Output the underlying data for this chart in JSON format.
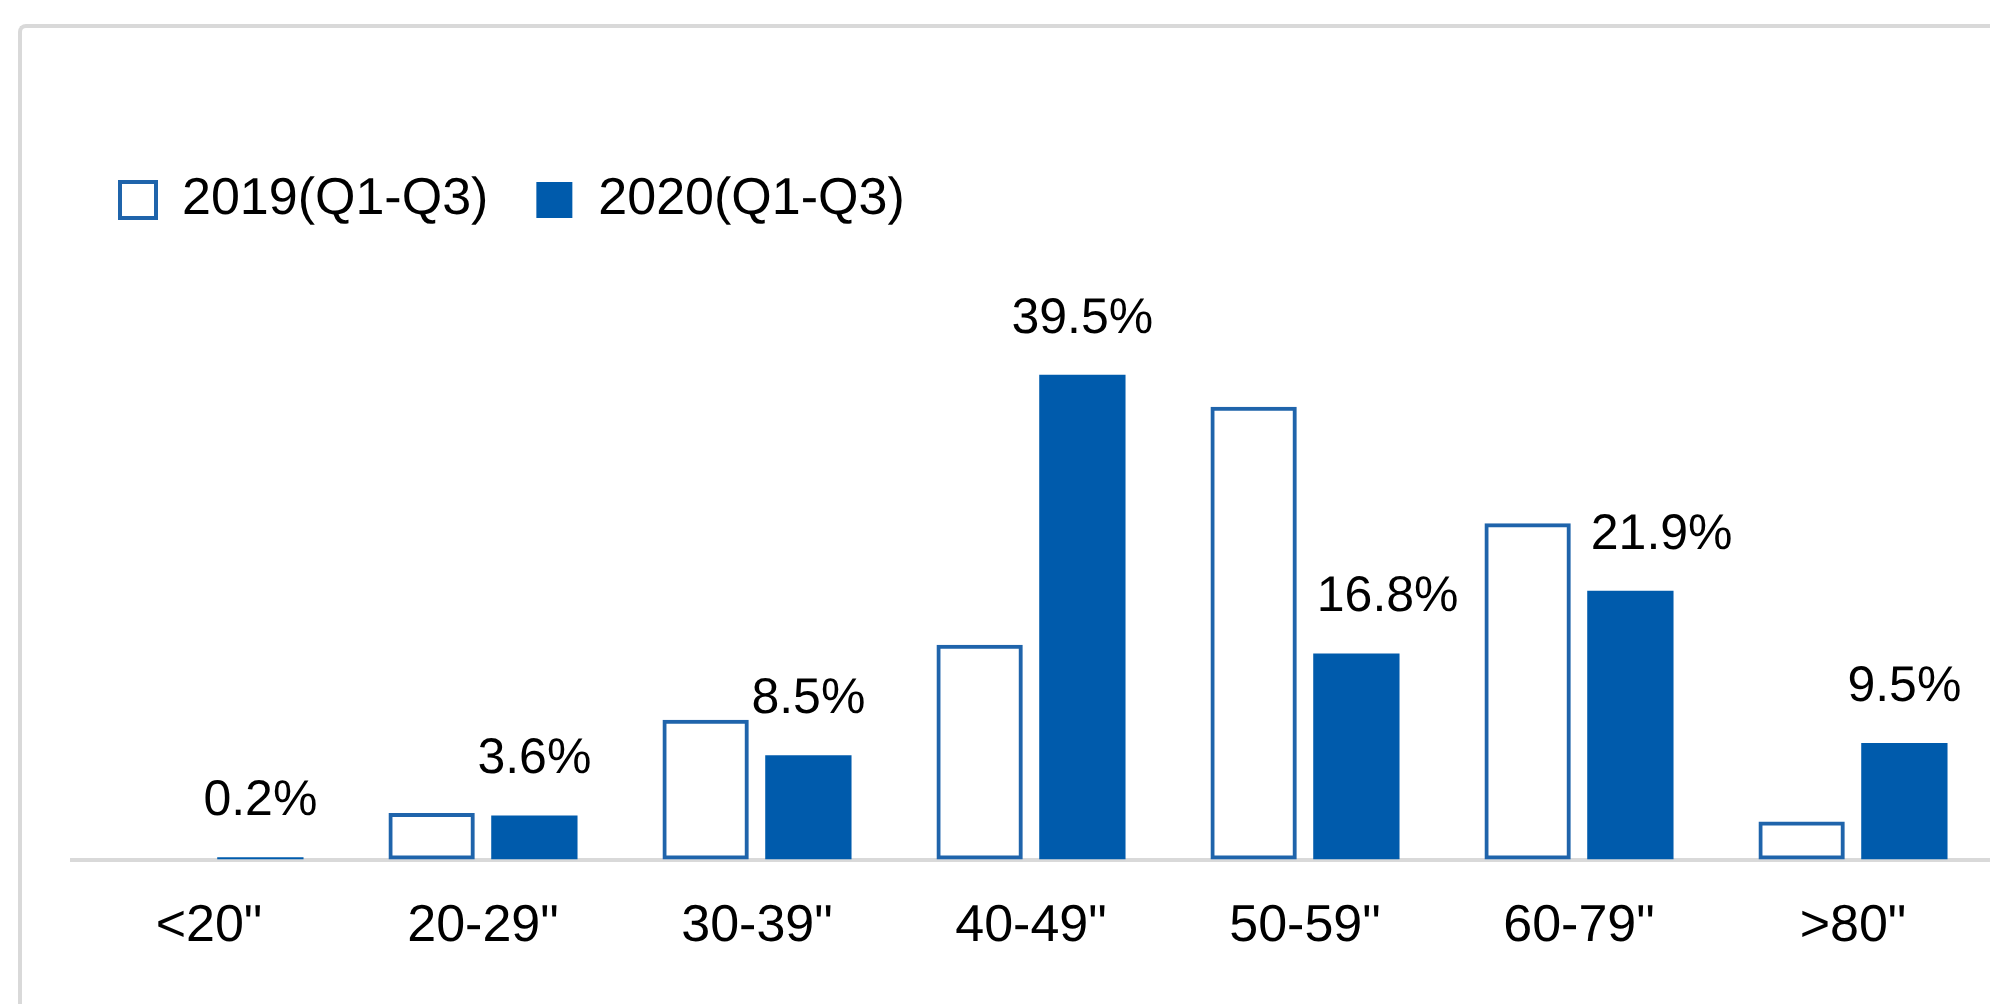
{
  "chart_data": {
    "type": "bar",
    "categories": [
      "<20\"",
      "20-29\"",
      "30-39\"",
      "40-49\"",
      "50-59\"",
      "60-79\"",
      ">80\""
    ],
    "series": [
      {
        "name": "2019(Q1-Q3)",
        "color": "#1f64ab",
        "values": [
          0,
          3.8,
          11.4,
          17.5,
          36.9,
          27.4,
          3.1
        ]
      },
      {
        "name": "2020(Q1-Q3)",
        "color": "#005bac",
        "values": [
          0.2,
          3.6,
          8.5,
          39.5,
          16.8,
          21.9,
          9.5
        ],
        "value_labels": [
          "0.2%",
          "3.6%",
          "8.5%",
          "39.5%",
          "16.8%",
          "21.9%",
          "9.5%"
        ]
      }
    ],
    "legend": "top left",
    "grid": false
  }
}
